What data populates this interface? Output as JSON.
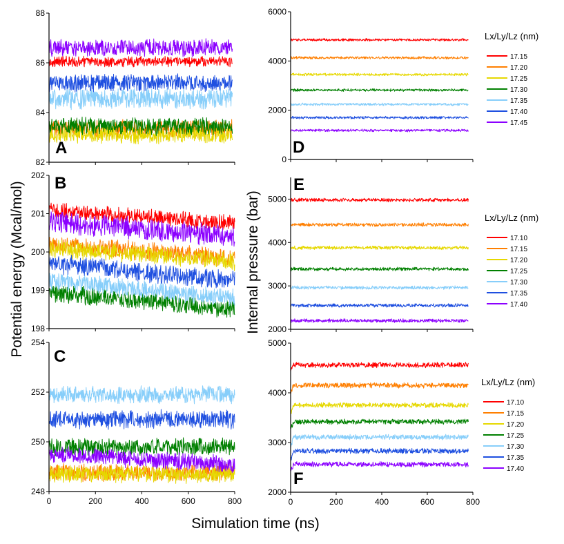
{
  "figure": {
    "left_ylabel": "Potential energy (Mcal/mol)",
    "right_ylabel": "Internal pressure (bar)",
    "xlabel": "Simulation time (ns)"
  },
  "chart_data": [
    {
      "panel": "A",
      "type": "line",
      "title": "",
      "xlabel": "",
      "ylabel": "Potential energy (Mcal/mol)",
      "xlim": [
        0,
        800
      ],
      "ylim": [
        82,
        88
      ],
      "yticks": [
        82,
        84,
        86,
        88
      ],
      "xticks": [],
      "series": [
        {
          "name": "17.15",
          "color": "#ff0000",
          "mean": 86.05,
          "noise": 0.18,
          "start": 0,
          "end": 790
        },
        {
          "name": "17.45",
          "color": "#8b00ff",
          "mean": 86.6,
          "noise": 0.3,
          "start": 0,
          "end": 790
        },
        {
          "name": "17.20",
          "color": "#ff7f00",
          "mean": 83.35,
          "noise": 0.3,
          "start": 0,
          "end": 790
        },
        {
          "name": "17.25",
          "color": "#e6d800",
          "mean": 83.1,
          "noise": 0.3,
          "start": 0,
          "end": 790
        },
        {
          "name": "17.30",
          "color": "#008000",
          "mean": 83.45,
          "noise": 0.3,
          "start": 0,
          "end": 790
        },
        {
          "name": "17.35",
          "color": "#87cefa",
          "mean": 84.55,
          "noise": 0.35,
          "start": 0,
          "end": 790
        },
        {
          "name": "17.40",
          "color": "#1e4fe0",
          "mean": 85.2,
          "noise": 0.3,
          "start": 0,
          "end": 790
        }
      ]
    },
    {
      "panel": "B",
      "type": "line",
      "title": "",
      "xlabel": "",
      "ylabel": "",
      "xlim": [
        0,
        800
      ],
      "ylim": [
        198,
        202
      ],
      "yticks": [
        198,
        199,
        200,
        201,
        202
      ],
      "xticks": [],
      "series": [
        {
          "name": "17.10",
          "color": "#ff0000",
          "mean": 201.1,
          "noise": 0.18,
          "start": 0,
          "end": 800,
          "drift": -0.35
        },
        {
          "name": "17.15",
          "color": "#ff7f00",
          "mean": 200.2,
          "noise": 0.2,
          "start": 0,
          "end": 800,
          "drift": -0.35
        },
        {
          "name": "17.20",
          "color": "#e6d800",
          "mean": 200.1,
          "noise": 0.2,
          "start": 0,
          "end": 800,
          "drift": -0.35
        },
        {
          "name": "17.25",
          "color": "#008000",
          "mean": 198.95,
          "noise": 0.2,
          "start": 0,
          "end": 800,
          "drift": -0.45
        },
        {
          "name": "17.30",
          "color": "#87cefa",
          "mean": 199.25,
          "noise": 0.2,
          "start": 0,
          "end": 800,
          "drift": -0.45
        },
        {
          "name": "17.40",
          "color": "#8b00ff",
          "mean": 200.8,
          "noise": 0.25,
          "start": 0,
          "end": 800,
          "drift": -0.4
        },
        {
          "name": "17.35",
          "color": "#1e4fe0",
          "mean": 199.7,
          "noise": 0.22,
          "start": 0,
          "end": 800,
          "drift": -0.45
        }
      ]
    },
    {
      "panel": "C",
      "type": "line",
      "title": "",
      "xlabel": "Simulation time (ns)",
      "ylabel": "",
      "xlim": [
        0,
        800
      ],
      "ylim": [
        248,
        254
      ],
      "yticks": [
        248,
        250,
        252,
        254
      ],
      "xticks": [
        0,
        200,
        400,
        600,
        800
      ],
      "series": [
        {
          "name": "17.15",
          "color": "#ff7f00",
          "mean": 248.75,
          "noise": 0.3,
          "start": 0,
          "end": 800
        },
        {
          "name": "17.20",
          "color": "#e6d800",
          "mean": 248.7,
          "noise": 0.3,
          "start": 0,
          "end": 800
        },
        {
          "name": "17.25",
          "color": "#008000",
          "mean": 249.8,
          "noise": 0.3,
          "start": 0,
          "end": 800
        },
        {
          "name": "17.30",
          "color": "#87cefa",
          "mean": 251.9,
          "noise": 0.3,
          "start": 0,
          "end": 800
        },
        {
          "name": "17.35",
          "color": "#1e4fe0",
          "mean": 250.9,
          "noise": 0.32,
          "start": 0,
          "end": 800
        },
        {
          "name": "17.40",
          "color": "#8b00ff",
          "mean": 249.5,
          "noise": 0.3,
          "start": 0,
          "end": 800,
          "drift": -0.4
        }
      ]
    },
    {
      "panel": "D",
      "type": "line",
      "title": "",
      "xlabel": "",
      "ylabel": "Internal pressure (bar)",
      "xlim": [
        0,
        800
      ],
      "ylim": [
        0,
        6000
      ],
      "yticks": [
        0,
        2000,
        4000,
        6000
      ],
      "xticks": [],
      "legend_title": "Lx/Ly/Lz (nm)",
      "series": [
        {
          "name": "17.15",
          "color": "#ff0000",
          "mean": 4860,
          "noise": 45,
          "start": 0,
          "end": 780
        },
        {
          "name": "17.20",
          "color": "#ff7f00",
          "mean": 4130,
          "noise": 45,
          "start": 0,
          "end": 780
        },
        {
          "name": "17.25",
          "color": "#e6d800",
          "mean": 3450,
          "noise": 45,
          "start": 0,
          "end": 780
        },
        {
          "name": "17.30",
          "color": "#008000",
          "mean": 2820,
          "noise": 45,
          "start": 0,
          "end": 780
        },
        {
          "name": "17.35",
          "color": "#87cefa",
          "mean": 2240,
          "noise": 45,
          "start": 0,
          "end": 780
        },
        {
          "name": "17.40",
          "color": "#1e4fe0",
          "mean": 1700,
          "noise": 45,
          "start": 0,
          "end": 780
        },
        {
          "name": "17.45",
          "color": "#8b00ff",
          "mean": 1180,
          "noise": 45,
          "start": 0,
          "end": 780
        }
      ]
    },
    {
      "panel": "E",
      "type": "line",
      "title": "",
      "xlabel": "",
      "ylabel": "",
      "xlim": [
        0,
        800
      ],
      "ylim": [
        2000,
        5500
      ],
      "yticks": [
        2000,
        3000,
        4000,
        5000
      ],
      "xticks": [],
      "legend_title": "Lx/Ly/Lz (nm)",
      "series": [
        {
          "name": "17.10",
          "color": "#ff0000",
          "mean": 4980,
          "noise": 35,
          "start": 0,
          "end": 780
        },
        {
          "name": "17.15",
          "color": "#ff7f00",
          "mean": 4410,
          "noise": 35,
          "start": 0,
          "end": 780
        },
        {
          "name": "17.20",
          "color": "#e6d800",
          "mean": 3880,
          "noise": 35,
          "start": 0,
          "end": 780
        },
        {
          "name": "17.25",
          "color": "#008000",
          "mean": 3390,
          "noise": 35,
          "start": 0,
          "end": 780
        },
        {
          "name": "17.30",
          "color": "#87cefa",
          "mean": 2960,
          "noise": 35,
          "start": 0,
          "end": 780
        },
        {
          "name": "17.35",
          "color": "#1e4fe0",
          "mean": 2550,
          "noise": 35,
          "start": 0,
          "end": 780
        },
        {
          "name": "17.40",
          "color": "#8b00ff",
          "mean": 2200,
          "noise": 35,
          "start": 0,
          "end": 780
        }
      ]
    },
    {
      "panel": "F",
      "type": "line",
      "title": "",
      "xlabel": "Simulation time (ns)",
      "ylabel": "",
      "xlim": [
        0,
        800
      ],
      "ylim": [
        2000,
        5000
      ],
      "yticks": [
        2000,
        3000,
        4000,
        5000
      ],
      "xticks": [
        0,
        200,
        400,
        600,
        800
      ],
      "legend_title": "Lx/Ly/Lz (nm)",
      "series": [
        {
          "name": "17.10",
          "color": "#ff0000",
          "mean": 4560,
          "noise": 45,
          "start": 0,
          "end": 780,
          "startval": 4440
        },
        {
          "name": "17.15",
          "color": "#ff7f00",
          "mean": 4150,
          "noise": 45,
          "start": 0,
          "end": 780,
          "startval": 4000
        },
        {
          "name": "17.20",
          "color": "#e6d800",
          "mean": 3750,
          "noise": 45,
          "start": 0,
          "end": 780,
          "startval": 3580
        },
        {
          "name": "17.25",
          "color": "#008000",
          "mean": 3420,
          "noise": 45,
          "start": 0,
          "end": 780,
          "startval": 3260
        },
        {
          "name": "17.30",
          "color": "#87cefa",
          "mean": 3110,
          "noise": 45,
          "start": 0,
          "end": 780,
          "startval": 2900
        },
        {
          "name": "17.35",
          "color": "#1e4fe0",
          "mean": 2830,
          "noise": 45,
          "start": 0,
          "end": 780,
          "startval": 2640
        },
        {
          "name": "17.40",
          "color": "#8b00ff",
          "mean": 2560,
          "noise": 45,
          "start": 0,
          "end": 780,
          "startval": 2420
        }
      ]
    }
  ]
}
